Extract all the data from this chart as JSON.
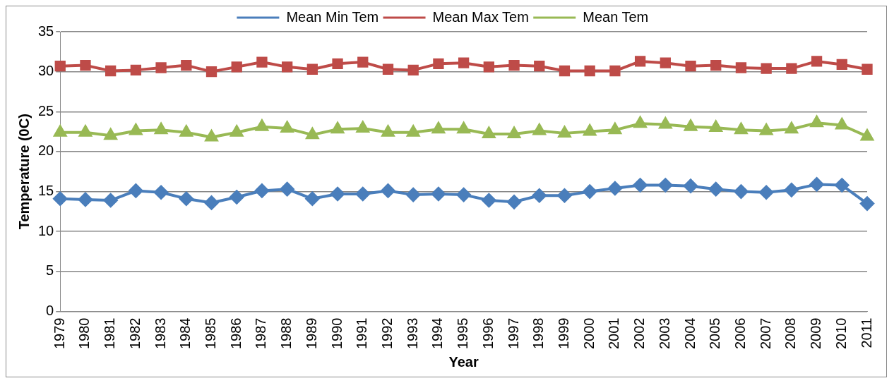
{
  "chart_data": {
    "type": "line",
    "xlabel": "Year",
    "ylabel": "Temperature (0C)",
    "categories": [
      "1979",
      "1980",
      "1981",
      "1982",
      "1983",
      "1984",
      "1985",
      "1986",
      "1987",
      "1988",
      "1989",
      "1990",
      "1991",
      "1992",
      "1993",
      "1994",
      "1995",
      "1996",
      "1997",
      "1998",
      "1999",
      "2000",
      "2001",
      "2002",
      "2003",
      "2004",
      "2005",
      "2006",
      "2007",
      "2008",
      "2009",
      "2010",
      "2011"
    ],
    "series": [
      {
        "name": "Mean Min Tem",
        "color": "#4a7ebb",
        "marker": "diamond",
        "values": [
          14.1,
          14.0,
          13.9,
          15.1,
          14.9,
          14.1,
          13.6,
          14.3,
          15.1,
          15.3,
          14.1,
          14.7,
          14.7,
          15.1,
          14.6,
          14.7,
          14.6,
          13.9,
          13.7,
          14.5,
          14.5,
          15.0,
          15.4,
          15.8,
          15.8,
          15.7,
          15.3,
          15.0,
          14.9,
          15.2,
          15.9,
          15.8,
          13.5
        ]
      },
      {
        "name": "Mean Max Tem",
        "color": "#be4b48",
        "marker": "square",
        "values": [
          30.7,
          30.8,
          30.1,
          30.2,
          30.5,
          30.8,
          30.0,
          30.6,
          31.2,
          30.6,
          30.3,
          31.0,
          31.2,
          30.3,
          30.2,
          31.0,
          31.1,
          30.6,
          30.8,
          30.7,
          30.1,
          30.1,
          30.1,
          31.3,
          31.1,
          30.7,
          30.8,
          30.5,
          30.4,
          30.4,
          31.3,
          30.9,
          30.3
        ]
      },
      {
        "name": "Mean Tem",
        "color": "#98b954",
        "marker": "triangle",
        "values": [
          22.4,
          22.4,
          22.0,
          22.6,
          22.7,
          22.4,
          21.8,
          22.4,
          23.1,
          22.9,
          22.1,
          22.8,
          22.9,
          22.4,
          22.4,
          22.8,
          22.8,
          22.2,
          22.2,
          22.6,
          22.3,
          22.5,
          22.7,
          23.5,
          23.4,
          23.1,
          23.0,
          22.7,
          22.6,
          22.8,
          23.6,
          23.3,
          21.9
        ]
      }
    ],
    "ylim": [
      0,
      35
    ],
    "yticks": [
      0,
      5,
      10,
      15,
      20,
      25,
      30,
      35
    ],
    "grid": "y",
    "legend": "top"
  }
}
